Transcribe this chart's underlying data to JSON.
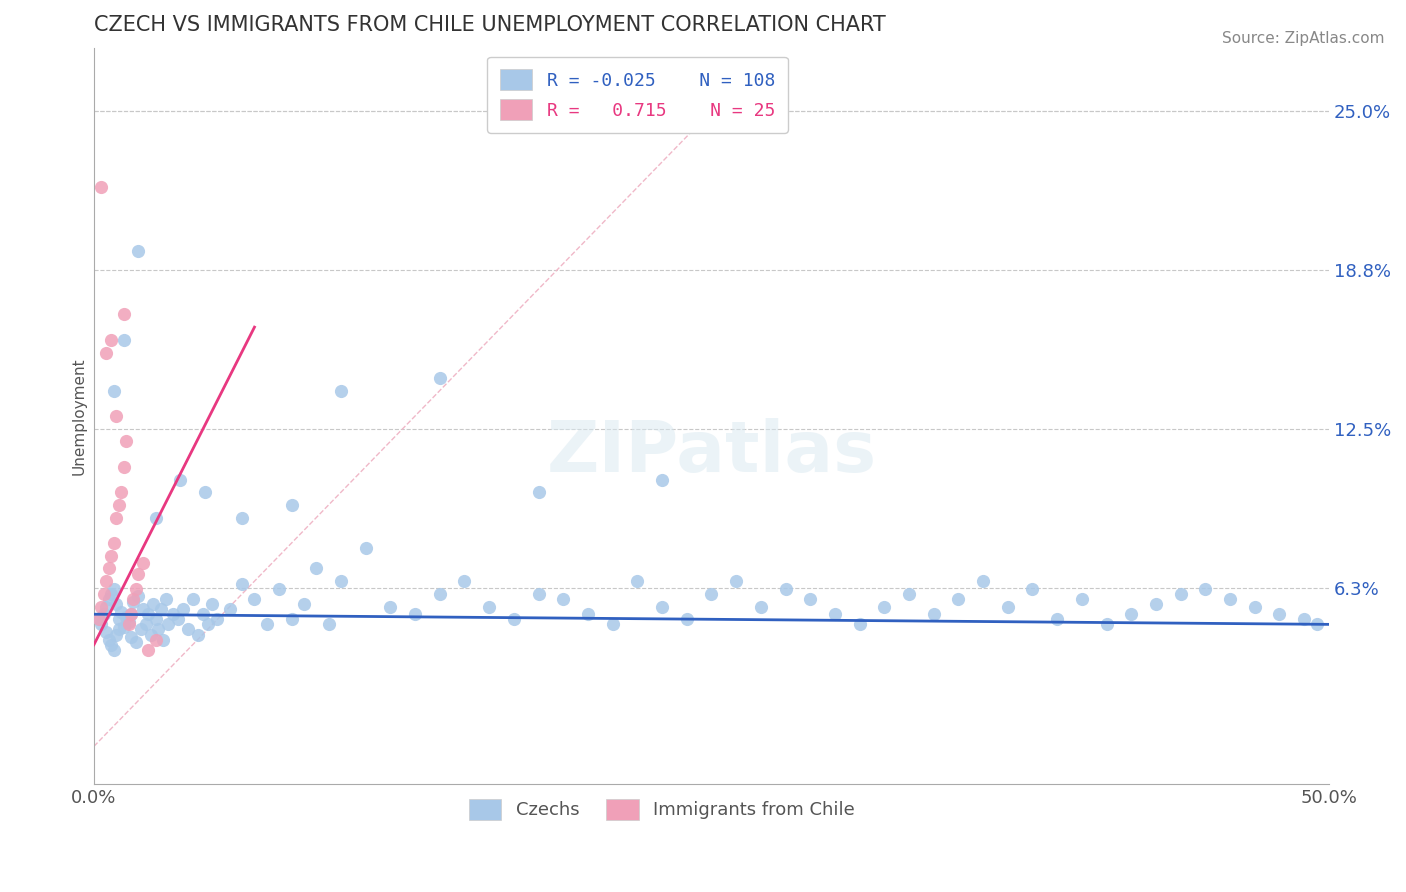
{
  "title": "CZECH VS IMMIGRANTS FROM CHILE UNEMPLOYMENT CORRELATION CHART",
  "source": "Source: ZipAtlas.com",
  "ylabel": "Unemployment",
  "xlim": [
    0.0,
    0.5
  ],
  "ylim": [
    -0.015,
    0.275
  ],
  "xticks": [
    0.0,
    0.5
  ],
  "xticklabels": [
    "0.0%",
    "50.0%"
  ],
  "ytick_positions": [
    0.0625,
    0.125,
    0.1875,
    0.25
  ],
  "ytick_labels": [
    "6.3%",
    "12.5%",
    "18.8%",
    "25.0%"
  ],
  "grid_color": "#c8c8c8",
  "background_color": "#ffffff",
  "blue_color": "#a8c8e8",
  "pink_color": "#f0a0b8",
  "blue_line_color": "#3060c0",
  "pink_line_color": "#e83880",
  "ref_line_color": "#f0b8c8",
  "R_blue": -0.025,
  "N_blue": 108,
  "R_pink": 0.715,
  "N_pink": 25,
  "legend_label_blue": "Czechs",
  "legend_label_pink": "Immigrants from Chile",
  "title_fontsize": 15,
  "axis_label_fontsize": 11,
  "tick_fontsize": 13,
  "legend_fontsize": 13,
  "source_fontsize": 11,
  "blue_scatter_x": [
    0.002,
    0.003,
    0.004,
    0.005,
    0.005,
    0.006,
    0.006,
    0.007,
    0.007,
    0.008,
    0.008,
    0.009,
    0.009,
    0.01,
    0.01,
    0.011,
    0.012,
    0.013,
    0.014,
    0.015,
    0.015,
    0.016,
    0.017,
    0.018,
    0.019,
    0.02,
    0.021,
    0.022,
    0.023,
    0.024,
    0.025,
    0.026,
    0.027,
    0.028,
    0.029,
    0.03,
    0.032,
    0.034,
    0.036,
    0.038,
    0.04,
    0.042,
    0.044,
    0.046,
    0.048,
    0.05,
    0.055,
    0.06,
    0.065,
    0.07,
    0.075,
    0.08,
    0.085,
    0.09,
    0.095,
    0.1,
    0.11,
    0.12,
    0.13,
    0.14,
    0.15,
    0.16,
    0.17,
    0.18,
    0.19,
    0.2,
    0.21,
    0.22,
    0.23,
    0.24,
    0.25,
    0.26,
    0.27,
    0.28,
    0.29,
    0.3,
    0.31,
    0.32,
    0.33,
    0.34,
    0.35,
    0.36,
    0.37,
    0.38,
    0.39,
    0.4,
    0.41,
    0.42,
    0.43,
    0.44,
    0.45,
    0.46,
    0.47,
    0.48,
    0.49,
    0.495,
    0.008,
    0.012,
    0.018,
    0.025,
    0.035,
    0.045,
    0.06,
    0.08,
    0.1,
    0.14,
    0.18,
    0.23
  ],
  "blue_scatter_y": [
    0.05,
    0.048,
    0.052,
    0.045,
    0.055,
    0.042,
    0.058,
    0.04,
    0.06,
    0.038,
    0.062,
    0.044,
    0.056,
    0.05,
    0.046,
    0.053,
    0.047,
    0.051,
    0.049,
    0.052,
    0.043,
    0.057,
    0.041,
    0.059,
    0.046,
    0.054,
    0.048,
    0.052,
    0.044,
    0.056,
    0.05,
    0.046,
    0.054,
    0.042,
    0.058,
    0.048,
    0.052,
    0.05,
    0.054,
    0.046,
    0.058,
    0.044,
    0.052,
    0.048,
    0.056,
    0.05,
    0.054,
    0.064,
    0.058,
    0.048,
    0.062,
    0.05,
    0.056,
    0.07,
    0.048,
    0.065,
    0.078,
    0.055,
    0.052,
    0.06,
    0.065,
    0.055,
    0.05,
    0.06,
    0.058,
    0.052,
    0.048,
    0.065,
    0.055,
    0.05,
    0.06,
    0.065,
    0.055,
    0.062,
    0.058,
    0.052,
    0.048,
    0.055,
    0.06,
    0.052,
    0.058,
    0.065,
    0.055,
    0.062,
    0.05,
    0.058,
    0.048,
    0.052,
    0.056,
    0.06,
    0.062,
    0.058,
    0.055,
    0.052,
    0.05,
    0.048,
    0.14,
    0.16,
    0.195,
    0.09,
    0.105,
    0.1,
    0.09,
    0.095,
    0.14,
    0.145,
    0.1,
    0.105
  ],
  "pink_scatter_x": [
    0.002,
    0.003,
    0.004,
    0.005,
    0.006,
    0.007,
    0.008,
    0.009,
    0.01,
    0.011,
    0.012,
    0.013,
    0.014,
    0.015,
    0.016,
    0.017,
    0.018,
    0.02,
    0.022,
    0.025,
    0.003,
    0.005,
    0.007,
    0.009,
    0.012
  ],
  "pink_scatter_y": [
    0.05,
    0.055,
    0.06,
    0.065,
    0.07,
    0.075,
    0.08,
    0.09,
    0.095,
    0.1,
    0.11,
    0.12,
    0.048,
    0.052,
    0.058,
    0.062,
    0.068,
    0.072,
    0.038,
    0.042,
    0.22,
    0.155,
    0.16,
    0.13,
    0.17
  ],
  "pink_line_x_start": 0.0,
  "pink_line_x_end": 0.065,
  "pink_line_y_start": 0.04,
  "pink_line_y_end": 0.165,
  "blue_line_y_start": 0.052,
  "blue_line_y_end": 0.048
}
